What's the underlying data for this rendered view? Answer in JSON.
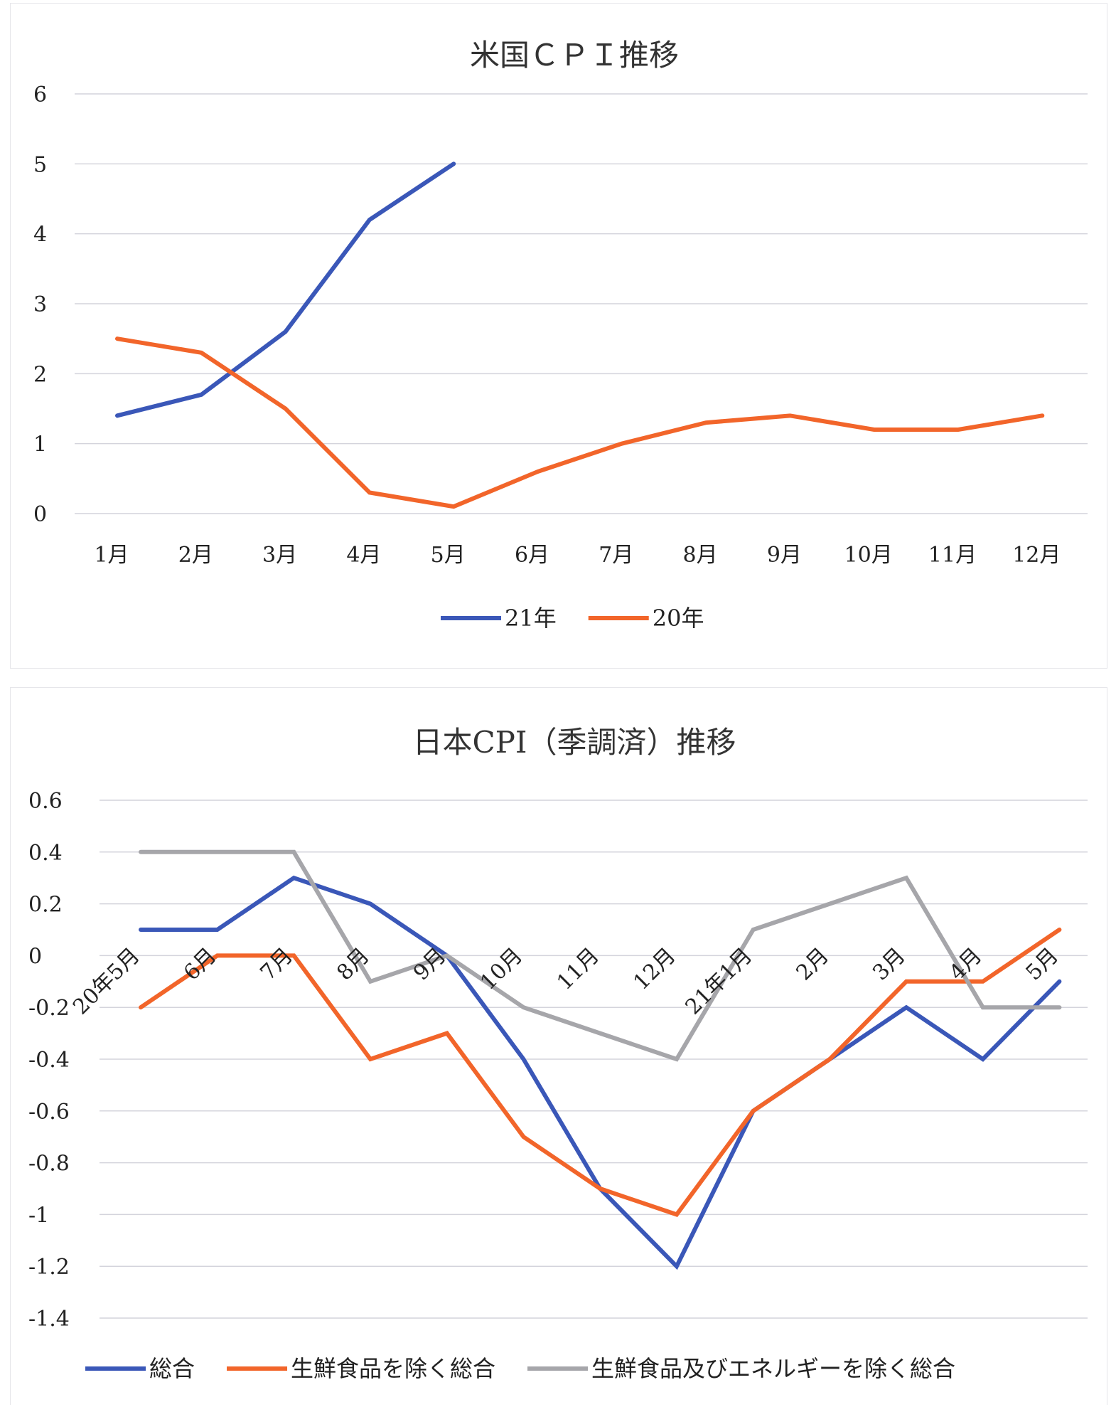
{
  "chart_data": [
    {
      "type": "line",
      "title": "米国ＣＰＩ推移",
      "categories": [
        "1月",
        "2月",
        "3月",
        "4月",
        "5月",
        "6月",
        "7月",
        "8月",
        "9月",
        "10月",
        "11月",
        "12月"
      ],
      "ylim": [
        0,
        6
      ],
      "yticks": [
        "0",
        "1",
        "2",
        "3",
        "4",
        "5",
        "6"
      ],
      "grid": true,
      "legend_position": "bottom",
      "series": [
        {
          "name": "21年",
          "color": "#3a57b8",
          "values": [
            1.4,
            1.7,
            2.6,
            4.2,
            5.0,
            null,
            null,
            null,
            null,
            null,
            null,
            null
          ]
        },
        {
          "name": "20年",
          "color": "#f2652a",
          "values": [
            2.5,
            2.3,
            1.5,
            0.3,
            0.1,
            0.6,
            1.0,
            1.3,
            1.4,
            1.2,
            1.2,
            1.4
          ]
        }
      ]
    },
    {
      "type": "line",
      "title": "日本CPI（季調済）推移",
      "categories": [
        "20年5月",
        "6月",
        "7月",
        "8月",
        "9月",
        "10月",
        "11月",
        "12月",
        "21年1月",
        "2月",
        "3月",
        "4月",
        "5月"
      ],
      "ylim": [
        -1.4,
        0.6
      ],
      "yticks": [
        "-1.4",
        "-1.2",
        "-1",
        "-0.8",
        "-0.6",
        "-0.4",
        "-0.2",
        "0",
        "0.2",
        "0.4",
        "0.6"
      ],
      "grid": true,
      "legend_position": "bottom",
      "series": [
        {
          "name": "総合",
          "color": "#3a57b8",
          "values": [
            0.1,
            0.1,
            0.3,
            0.2,
            0.0,
            -0.4,
            -0.9,
            -1.2,
            -0.6,
            -0.4,
            -0.2,
            -0.4,
            -0.1
          ]
        },
        {
          "name": "生鮮食品を除く総合",
          "color": "#f2652a",
          "values": [
            -0.2,
            0.0,
            0.0,
            -0.4,
            -0.3,
            -0.7,
            -0.9,
            -1.0,
            -0.6,
            -0.4,
            -0.1,
            -0.1,
            0.1
          ]
        },
        {
          "name": "生鮮食品及びエネルギーを除く総合",
          "color": "#a6a6aa",
          "values": [
            0.4,
            0.4,
            0.4,
            -0.1,
            0.0,
            -0.2,
            -0.3,
            -0.4,
            0.1,
            0.2,
            0.3,
            -0.2,
            -0.2
          ]
        }
      ]
    }
  ]
}
